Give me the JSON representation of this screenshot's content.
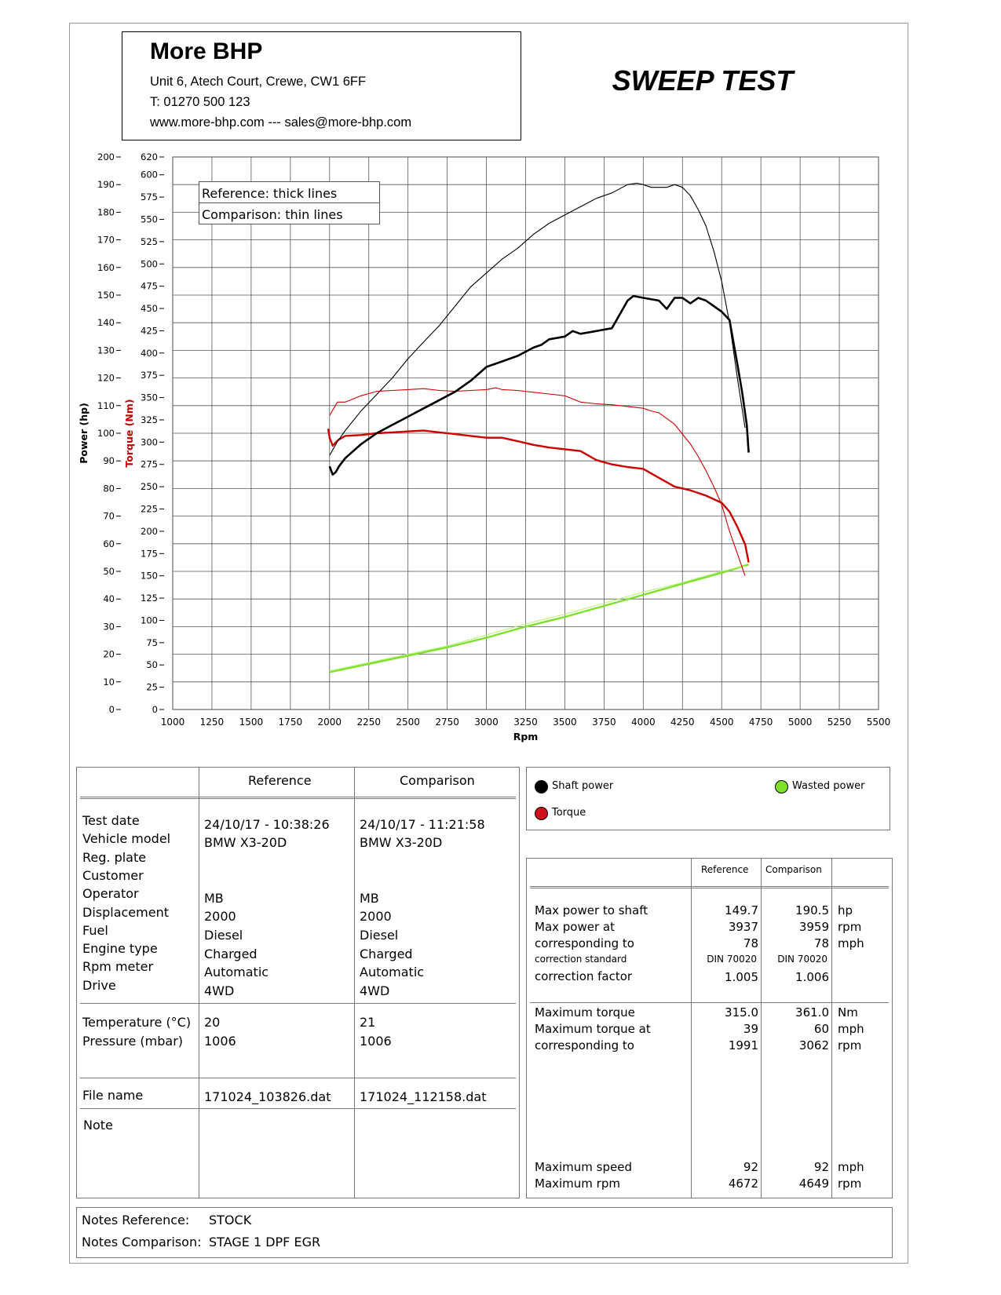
{
  "header": {
    "company": "More BHP",
    "address": "Unit 6, Atech Court, Crewe, CW1 6FF",
    "phone": "T: 01270 500 123",
    "web": "www.more-bhp.com --- sales@more-bhp.com",
    "title": "SWEEP TEST"
  },
  "chart_legend_box": {
    "reference": "Reference: thick lines",
    "comparison": "Comparison: thin lines"
  },
  "chart_data": {
    "type": "line",
    "xlabel": "Rpm",
    "ylabel_left": "Power (hp)",
    "ylabel_right": "Torque (Nm)",
    "xlim": [
      1000,
      5500
    ],
    "ylim_power": [
      0,
      200
    ],
    "ylim_torque": [
      0,
      620
    ],
    "x_ticks": [
      "1000",
      "1250",
      "1500",
      "1750",
      "2000",
      "2250",
      "2500",
      "2750",
      "3000",
      "3250",
      "3500",
      "3750",
      "4000",
      "4250",
      "4500",
      "4750",
      "5000",
      "5250",
      "5500"
    ],
    "power_ticks": [
      "0",
      "10",
      "20",
      "30",
      "40",
      "50",
      "60",
      "70",
      "80",
      "90",
      "100",
      "110",
      "120",
      "130",
      "140",
      "150",
      "160",
      "170",
      "180",
      "190",
      "200"
    ],
    "torque_ticks": [
      "0",
      "25",
      "50",
      "75",
      "100",
      "125",
      "150",
      "175",
      "200",
      "225",
      "250",
      "275",
      "300",
      "325",
      "350",
      "375",
      "400",
      "425",
      "450",
      "475",
      "500",
      "525",
      "550",
      "575",
      "600",
      "620"
    ],
    "grid": true,
    "series": [
      {
        "name": "Shaft power",
        "axis": "power",
        "style": "thick",
        "color": "#000000",
        "x": [
          2000,
          2020,
          2040,
          2060,
          2100,
          2200,
          2300,
          2400,
          2500,
          2600,
          2700,
          2800,
          2900,
          3000,
          3100,
          3200,
          3300,
          3350,
          3400,
          3500,
          3550,
          3600,
          3700,
          3800,
          3900,
          3937,
          4000,
          4100,
          4150,
          4200,
          4250,
          4300,
          4350,
          4400,
          4450,
          4500,
          4550,
          4600,
          4630,
          4660,
          4672
        ],
        "y": [
          88,
          85,
          86,
          88,
          91,
          96,
          100,
          103,
          106,
          109,
          112,
          115,
          119,
          124,
          126,
          128,
          131,
          132,
          134,
          135,
          137,
          136,
          137,
          138,
          148,
          149.7,
          149,
          148,
          145,
          149,
          149,
          147,
          149,
          148,
          146,
          144,
          141,
          125,
          115,
          103,
          93
        ]
      },
      {
        "name": "Shaft power",
        "axis": "power",
        "style": "thin",
        "color": "#000000",
        "x": [
          2000,
          2050,
          2100,
          2200,
          2300,
          2400,
          2500,
          2600,
          2700,
          2800,
          2900,
          3000,
          3100,
          3200,
          3300,
          3400,
          3500,
          3600,
          3700,
          3800,
          3900,
          3959,
          4000,
          4050,
          4100,
          4150,
          4200,
          4250,
          4300,
          4350,
          4400,
          4450,
          4500,
          4550,
          4600,
          4649
        ],
        "y": [
          92,
          97,
          101,
          108,
          114,
          120,
          127,
          133,
          139,
          146,
          153,
          158,
          163,
          167,
          172,
          176,
          179,
          182,
          185,
          187,
          190,
          190.5,
          190,
          189,
          189,
          189,
          190,
          189,
          186,
          181,
          175,
          166,
          155,
          140,
          120,
          102
        ]
      },
      {
        "name": "Torque",
        "axis": "torque",
        "style": "thick",
        "color": "#cc0000",
        "x": [
          1991,
          2000,
          2020,
          2040,
          2060,
          2100,
          2200,
          2300,
          2400,
          2500,
          2600,
          2700,
          2800,
          2900,
          3000,
          3100,
          3200,
          3300,
          3400,
          3500,
          3600,
          3700,
          3800,
          3900,
          4000,
          4100,
          4200,
          4300,
          4400,
          4500,
          4550,
          4600,
          4650,
          4672
        ],
        "y": [
          315,
          305,
          296,
          300,
          303,
          307,
          308,
          310,
          311,
          312,
          313,
          311,
          309,
          307,
          305,
          305,
          301,
          297,
          294,
          292,
          290,
          280,
          275,
          272,
          270,
          260,
          250,
          246,
          240,
          232,
          222,
          205,
          185,
          165
        ]
      },
      {
        "name": "Torque",
        "axis": "torque",
        "style": "thin",
        "color": "#cc0000",
        "x": [
          2000,
          2050,
          2100,
          2200,
          2300,
          2400,
          2500,
          2600,
          2700,
          2800,
          2900,
          3000,
          3062,
          3100,
          3200,
          3300,
          3400,
          3500,
          3600,
          3700,
          3800,
          3900,
          4000,
          4050,
          4100,
          4200,
          4300,
          4350,
          4400,
          4450,
          4500,
          4550,
          4600,
          4649
        ],
        "y": [
          330,
          345,
          345,
          352,
          357,
          358,
          359,
          360,
          358,
          357,
          358,
          359,
          361,
          359,
          358,
          356,
          354,
          352,
          345,
          343,
          342,
          340,
          338,
          335,
          333,
          320,
          298,
          284,
          268,
          250,
          230,
          200,
          175,
          150
        ]
      },
      {
        "name": "Wasted power",
        "axis": "power",
        "style": "thick",
        "color": "#7ee02a",
        "x": [
          2000,
          2250,
          2500,
          2750,
          3000,
          3250,
          3500,
          3750,
          4000,
          4250,
          4500,
          4672
        ],
        "y": [
          13.5,
          16.5,
          19.5,
          22.5,
          26,
          30,
          33.5,
          37.5,
          41.5,
          45.5,
          49.5,
          52.5
        ]
      },
      {
        "name": "Wasted power",
        "axis": "power",
        "style": "thin",
        "color": "#b6f27a",
        "x": [
          2000,
          2250,
          2500,
          2750,
          3000,
          3250,
          3500,
          3750,
          4000,
          4250,
          4500,
          4649
        ],
        "y": [
          14,
          17,
          20,
          23,
          27,
          31,
          34.5,
          38.5,
          42.5,
          46,
          50,
          52
        ]
      }
    ]
  },
  "info_table": {
    "col_reference": "Reference",
    "col_comparison": "Comparison",
    "rows": [
      {
        "label": "Test date",
        "ref": "24/10/17 - 10:38:26",
        "cmp": "24/10/17 - 11:21:58"
      },
      {
        "label": "Vehicle model",
        "ref": "BMW X3-20D",
        "cmp": "BMW X3-20D"
      },
      {
        "label": "Reg. plate",
        "ref": "",
        "cmp": ""
      },
      {
        "label": "Customer",
        "ref": "",
        "cmp": ""
      },
      {
        "label": "Operator",
        "ref": "MB",
        "cmp": "MB"
      },
      {
        "label": "Displacement",
        "ref": "2000",
        "cmp": "2000"
      },
      {
        "label": "Fuel",
        "ref": "Diesel",
        "cmp": "Diesel"
      },
      {
        "label": "Engine type",
        "ref": "Charged",
        "cmp": "Charged"
      },
      {
        "label": "Rpm meter",
        "ref": "Automatic",
        "cmp": "Automatic"
      },
      {
        "label": "Drive",
        "ref": "4WD",
        "cmp": "4WD"
      }
    ],
    "env": [
      {
        "label": "Temperature (°C)",
        "ref": "20",
        "cmp": "21"
      },
      {
        "label": "Pressure (mbar)",
        "ref": "1006",
        "cmp": "1006"
      }
    ],
    "file": {
      "label": "File name",
      "ref": "171024_103826.dat",
      "cmp": "171024_112158.dat"
    },
    "note_label": "Note"
  },
  "legend": {
    "shaft_power": "Shaft power",
    "torque": "Torque",
    "wasted_power": "Wasted power",
    "colors": {
      "shaft": "#000000",
      "torque": "#d0101a",
      "wasted": "#7ee02a"
    }
  },
  "results": {
    "col_reference": "Reference",
    "col_comparison": "Comparison",
    "power_rows": [
      {
        "label": "Max power to shaft",
        "ref": "149.7",
        "cmp": "190.5",
        "unit": "hp"
      },
      {
        "label": "Max power at",
        "ref": "3937",
        "cmp": "3959",
        "unit": "rpm"
      },
      {
        "label": "corresponding to",
        "ref": "78",
        "cmp": "78",
        "unit": "mph"
      }
    ],
    "correction_standard": {
      "label": "correction standard",
      "ref": "DIN 70020",
      "cmp": "DIN 70020"
    },
    "correction_factor": {
      "label": "correction factor",
      "ref": "1.005",
      "cmp": "1.006"
    },
    "torque_rows": [
      {
        "label": "Maximum torque",
        "ref": "315.0",
        "cmp": "361.0",
        "unit": "Nm"
      },
      {
        "label": "Maximum torque at",
        "ref": "39",
        "cmp": "60",
        "unit": "mph"
      },
      {
        "label": "corresponding to",
        "ref": "1991",
        "cmp": "3062",
        "unit": "rpm"
      }
    ],
    "speed_rows": [
      {
        "label": "Maximum speed",
        "ref": "92",
        "cmp": "92",
        "unit": "mph"
      },
      {
        "label": "Maximum rpm",
        "ref": "4672",
        "cmp": "4649",
        "unit": "rpm"
      }
    ]
  },
  "notes": {
    "ref_label": "Notes Reference:",
    "ref_value": "STOCK",
    "cmp_label": "Notes Comparison:",
    "cmp_value": "STAGE 1 DPF EGR"
  }
}
